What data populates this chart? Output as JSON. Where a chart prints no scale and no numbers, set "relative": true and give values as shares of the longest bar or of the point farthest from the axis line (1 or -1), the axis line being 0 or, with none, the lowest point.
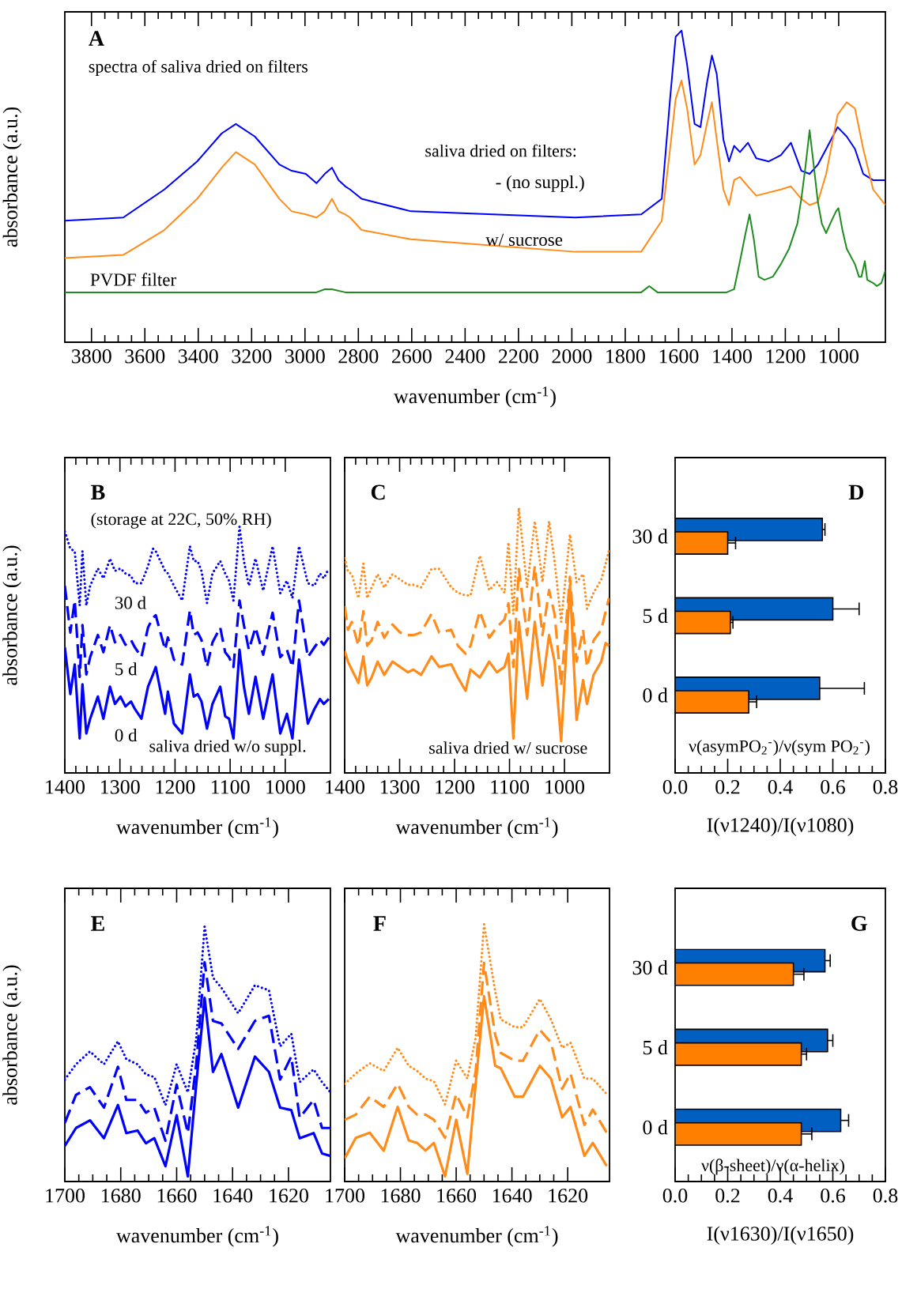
{
  "chart_data": [
    {
      "type": "line",
      "title": "A",
      "xlabel": "wavenumber (cm$^{-1}$)",
      "ylabel": "absorbance (a.u.)",
      "relative": true,
      "xlim": [
        3900,
        825
      ],
      "xticks": [
        3800,
        3600,
        3400,
        3200,
        3000,
        2800,
        2600,
        2400,
        2200,
        2000,
        1800,
        1600,
        1400,
        1200,
        1000
      ],
      "annotations": [
        "spectra of saliva dried on filters",
        "saliva dried on filters:"
      ],
      "series": [
        {
          "name": "- (no suppl.)",
          "color": "#0000ff",
          "line_style": "solid",
          "x": [
            3900,
            3681,
            3527,
            3404,
            3312,
            3259,
            3188,
            3096,
            3050,
            2997,
            2957,
            2926,
            2899,
            2874,
            2849,
            2831,
            2788,
            2603,
            2295,
            1987,
            1740,
            1663,
            1632,
            1611,
            1589,
            1568,
            1540,
            1518,
            1494,
            1475,
            1457,
            1432,
            1411,
            1392,
            1370,
            1340,
            1309,
            1263,
            1217,
            1179,
            1140,
            1109,
            1078,
            1047,
            1004,
            970,
            939,
            908,
            871,
            825
          ],
          "values": [
            0.39,
            0.4,
            0.49,
            0.58,
            0.67,
            0.7,
            0.66,
            0.57,
            0.55,
            0.54,
            0.51,
            0.54,
            0.56,
            0.52,
            0.5,
            0.49,
            0.46,
            0.42,
            0.41,
            0.4,
            0.41,
            0.46,
            0.78,
            0.98,
            1.0,
            0.89,
            0.7,
            0.69,
            0.83,
            0.92,
            0.86,
            0.65,
            0.58,
            0.63,
            0.61,
            0.64,
            0.59,
            0.58,
            0.6,
            0.64,
            0.55,
            0.54,
            0.57,
            0.62,
            0.69,
            0.66,
            0.62,
            0.54,
            0.52,
            0.52
          ]
        },
        {
          "name": "w/ sucrose",
          "color": "#ff8c1a",
          "line_style": "solid",
          "x": [
            3900,
            3681,
            3527,
            3404,
            3312,
            3259,
            3188,
            3096,
            3050,
            2997,
            2957,
            2926,
            2899,
            2874,
            2849,
            2831,
            2788,
            2603,
            2295,
            1987,
            1740,
            1663,
            1632,
            1611,
            1589,
            1568,
            1540,
            1518,
            1494,
            1475,
            1457,
            1432,
            1411,
            1392,
            1370,
            1340,
            1309,
            1263,
            1217,
            1179,
            1140,
            1109,
            1078,
            1047,
            1004,
            970,
            939,
            908,
            871,
            825
          ],
          "values": [
            0.27,
            0.28,
            0.36,
            0.46,
            0.56,
            0.61,
            0.57,
            0.46,
            0.42,
            0.41,
            0.4,
            0.42,
            0.46,
            0.42,
            0.41,
            0.4,
            0.36,
            0.33,
            0.31,
            0.29,
            0.29,
            0.39,
            0.62,
            0.78,
            0.84,
            0.75,
            0.57,
            0.6,
            0.7,
            0.77,
            0.65,
            0.49,
            0.44,
            0.52,
            0.53,
            0.5,
            0.47,
            0.48,
            0.49,
            0.5,
            0.46,
            0.44,
            0.45,
            0.54,
            0.73,
            0.77,
            0.75,
            0.62,
            0.49,
            0.44
          ]
        },
        {
          "name": "PVDF filter",
          "color": "#1e8c1e",
          "line_style": "solid",
          "x": [
            3900,
            2957,
            2926,
            2899,
            2849,
            1740,
            1710,
            1679,
            1420,
            1392,
            1370,
            1349,
            1334,
            1318,
            1300,
            1278,
            1247,
            1217,
            1186,
            1155,
            1140,
            1125,
            1109,
            1094,
            1078,
            1063,
            1047,
            1032,
            1010,
            1001,
            986,
            970,
            939,
            924,
            915,
            902,
            893,
            871,
            857,
            840,
            825
          ],
          "values": [
            0.16,
            0.16,
            0.17,
            0.17,
            0.16,
            0.16,
            0.18,
            0.16,
            0.16,
            0.17,
            0.26,
            0.35,
            0.41,
            0.33,
            0.21,
            0.2,
            0.21,
            0.25,
            0.3,
            0.38,
            0.46,
            0.56,
            0.68,
            0.57,
            0.45,
            0.38,
            0.35,
            0.38,
            0.42,
            0.43,
            0.36,
            0.3,
            0.25,
            0.21,
            0.21,
            0.26,
            0.2,
            0.19,
            0.18,
            0.19,
            0.23
          ]
        }
      ]
    },
    {
      "type": "line",
      "title": "B",
      "xlabel": "wavenumber (cm$^{-1}$)",
      "ylabel": "absorbance (a.u.)",
      "relative": true,
      "xlim": [
        1400,
        918
      ],
      "xticks": [
        1400,
        1300,
        1200,
        1100,
        1000
      ],
      "annotations": [
        "(storage at 22C, 50% RH)",
        "saliva dried w/o suppl."
      ],
      "series": [
        {
          "name": "0 d",
          "color": "#0000ff",
          "line_style": "solid",
          "x": [
            1400,
            1390,
            1382,
            1373,
            1368,
            1361,
            1354,
            1340,
            1330,
            1318,
            1309,
            1299,
            1290,
            1280,
            1273,
            1261,
            1249,
            1240,
            1235,
            1218,
            1213,
            1202,
            1187,
            1173,
            1166,
            1159,
            1152,
            1142,
            1132,
            1118,
            1109,
            1102,
            1094,
            1083,
            1075,
            1066,
            1054,
            1040,
            1023,
            1009,
            997,
            987,
            975,
            959,
            947,
            937,
            930,
            921
          ],
          "values": [
            0.51,
            0.32,
            0.44,
            0.14,
            0.36,
            0.16,
            0.22,
            0.31,
            0.22,
            0.35,
            0.28,
            0.31,
            0.27,
            0.29,
            0.26,
            0.22,
            0.35,
            0.4,
            0.43,
            0.24,
            0.33,
            0.2,
            0.16,
            0.4,
            0.31,
            0.32,
            0.29,
            0.18,
            0.28,
            0.35,
            0.23,
            0.22,
            0.14,
            0.5,
            0.35,
            0.24,
            0.39,
            0.22,
            0.4,
            0.16,
            0.24,
            0.14,
            0.46,
            0.2,
            0.26,
            0.3,
            0.28,
            0.3
          ]
        },
        {
          "name": "5 d",
          "color": "#0000ff",
          "line_style": "dashed",
          "x": [
            1400,
            1390,
            1382,
            1373,
            1368,
            1361,
            1354,
            1340,
            1330,
            1318,
            1309,
            1299,
            1290,
            1280,
            1273,
            1261,
            1249,
            1240,
            1235,
            1218,
            1213,
            1202,
            1187,
            1173,
            1166,
            1159,
            1152,
            1142,
            1132,
            1118,
            1109,
            1102,
            1094,
            1083,
            1075,
            1066,
            1054,
            1040,
            1023,
            1009,
            997,
            987,
            975,
            959,
            947,
            937,
            930,
            921
          ],
          "values": [
            0.76,
            0.57,
            0.7,
            0.39,
            0.6,
            0.4,
            0.47,
            0.56,
            0.49,
            0.6,
            0.53,
            0.56,
            0.52,
            0.54,
            0.51,
            0.47,
            0.59,
            0.63,
            0.64,
            0.5,
            0.55,
            0.46,
            0.44,
            0.66,
            0.56,
            0.57,
            0.54,
            0.43,
            0.53,
            0.59,
            0.49,
            0.47,
            0.43,
            0.7,
            0.6,
            0.5,
            0.59,
            0.48,
            0.65,
            0.47,
            0.5,
            0.43,
            0.7,
            0.47,
            0.51,
            0.54,
            0.52,
            0.55
          ]
        },
        {
          "name": "30 d",
          "color": "#0000ff",
          "line_style": "dotted",
          "x": [
            1400,
            1390,
            1382,
            1373,
            1368,
            1361,
            1354,
            1340,
            1330,
            1318,
            1309,
            1299,
            1290,
            1280,
            1273,
            1261,
            1249,
            1240,
            1235,
            1218,
            1213,
            1202,
            1187,
            1173,
            1166,
            1159,
            1152,
            1142,
            1132,
            1118,
            1109,
            1102,
            1094,
            1083,
            1075,
            1066,
            1054,
            1040,
            1023,
            1009,
            997,
            987,
            975,
            959,
            947,
            937,
            930,
            921
          ],
          "values": [
            0.98,
            0.91,
            0.9,
            0.68,
            0.9,
            0.68,
            0.76,
            0.83,
            0.79,
            0.87,
            0.82,
            0.83,
            0.81,
            0.8,
            0.77,
            0.77,
            0.84,
            0.91,
            0.9,
            0.82,
            0.81,
            0.76,
            0.7,
            0.92,
            0.86,
            0.86,
            0.82,
            0.69,
            0.81,
            0.86,
            0.81,
            0.78,
            0.7,
            1.0,
            0.86,
            0.76,
            0.87,
            0.74,
            0.92,
            0.73,
            0.78,
            0.71,
            0.92,
            0.77,
            0.76,
            0.81,
            0.79,
            0.83
          ]
        }
      ]
    },
    {
      "type": "line",
      "title": "C",
      "xlabel": "wavenumber (cm$^{-1}$)",
      "relative": true,
      "xlim": [
        1400,
        918
      ],
      "xticks": [
        1400,
        1300,
        1200,
        1100,
        1000
      ],
      "annotations": [
        "saliva dried w/ sucrose"
      ],
      "series": [
        {
          "color": "#ff8c1a",
          "line_style": "solid",
          "x": [
            1400,
            1394,
            1387,
            1375,
            1366,
            1359,
            1351,
            1340,
            1328,
            1313,
            1299,
            1285,
            1275,
            1261,
            1242,
            1228,
            1206,
            1194,
            1180,
            1171,
            1154,
            1137,
            1123,
            1109,
            1102,
            1093,
            1083,
            1068,
            1054,
            1040,
            1028,
            1018,
            1006,
            990,
            978,
            966,
            959,
            947,
            933,
            925,
            919
          ],
          "values": [
            0.46,
            0.42,
            0.39,
            0.34,
            0.44,
            0.33,
            0.36,
            0.42,
            0.37,
            0.42,
            0.4,
            0.38,
            0.39,
            0.37,
            0.44,
            0.4,
            0.41,
            0.36,
            0.31,
            0.39,
            0.36,
            0.42,
            0.38,
            0.4,
            0.45,
            0.13,
            0.57,
            0.28,
            0.57,
            0.33,
            0.52,
            0.42,
            0.12,
            0.71,
            0.2,
            0.35,
            0.26,
            0.37,
            0.42,
            0.49,
            0.48
          ]
        },
        {
          "color": "#ff8c1a",
          "line_style": "dashed",
          "x": [
            1400,
            1394,
            1387,
            1375,
            1366,
            1359,
            1351,
            1340,
            1328,
            1313,
            1299,
            1285,
            1275,
            1261,
            1242,
            1228,
            1206,
            1194,
            1180,
            1171,
            1154,
            1137,
            1123,
            1109,
            1102,
            1093,
            1083,
            1068,
            1054,
            1040,
            1028,
            1018,
            1006,
            990,
            978,
            966,
            959,
            947,
            933,
            925,
            919
          ],
          "values": [
            0.63,
            0.54,
            0.57,
            0.48,
            0.61,
            0.48,
            0.5,
            0.57,
            0.51,
            0.56,
            0.53,
            0.52,
            0.52,
            0.53,
            0.6,
            0.53,
            0.54,
            0.48,
            0.45,
            0.48,
            0.61,
            0.51,
            0.55,
            0.58,
            0.64,
            0.4,
            0.77,
            0.52,
            0.78,
            0.52,
            0.69,
            0.6,
            0.33,
            0.74,
            0.42,
            0.54,
            0.4,
            0.5,
            0.54,
            0.61,
            0.66
          ]
        },
        {
          "color": "#ff8c1a",
          "line_style": "dotted",
          "x": [
            1400,
            1394,
            1387,
            1375,
            1366,
            1359,
            1351,
            1340,
            1328,
            1313,
            1299,
            1285,
            1275,
            1261,
            1242,
            1228,
            1206,
            1194,
            1180,
            1171,
            1154,
            1137,
            1123,
            1109,
            1102,
            1093,
            1083,
            1068,
            1054,
            1040,
            1028,
            1018,
            1006,
            990,
            978,
            966,
            959,
            947,
            933,
            925,
            919
          ],
          "values": [
            0.81,
            0.76,
            0.75,
            0.66,
            0.79,
            0.66,
            0.7,
            0.75,
            0.7,
            0.75,
            0.73,
            0.71,
            0.71,
            0.7,
            0.77,
            0.77,
            0.7,
            0.68,
            0.67,
            0.67,
            0.82,
            0.69,
            0.72,
            0.68,
            0.87,
            0.6,
            1.0,
            0.7,
            0.95,
            0.72,
            0.95,
            0.8,
            0.57,
            0.9,
            0.72,
            0.75,
            0.62,
            0.68,
            0.73,
            0.79,
            0.84
          ]
        }
      ]
    },
    {
      "type": "bar",
      "orientation": "horizontal",
      "title": "D",
      "xlabel": "I(ν1240)/I(ν1080)",
      "categories": [
        "30 d",
        "5 d",
        "0 d"
      ],
      "xlim": [
        0,
        0.8
      ],
      "xticks": [
        {
          "value": 0,
          "label": "0.0"
        },
        {
          "value": 0.2,
          "label": "0.2"
        },
        {
          "value": 0.4,
          "label": "0.4"
        },
        {
          "value": 0.6,
          "label": "0.6"
        },
        {
          "value": 0.8,
          "label": "0.8"
        }
      ],
      "annotations": [
        "ν(asymPO$_{2}$$^{-}$)/ν(sym PO$_{2}$$^{-}$)"
      ],
      "series": [
        {
          "color": "#005fc0",
          "values": [
            0.56,
            0.6,
            0.55
          ],
          "errors": [
            [
              0.56,
              0.57
            ],
            [
              0.6,
              0.7
            ],
            [
              0.55,
              0.72
            ]
          ]
        },
        {
          "color": "#ff8000",
          "values": [
            0.2,
            0.21,
            0.28
          ],
          "errors": [
            [
              0.2,
              0.23
            ],
            [
              0.21,
              0.22
            ],
            [
              0.28,
              0.31
            ]
          ]
        }
      ]
    },
    {
      "type": "line",
      "title": "E",
      "xlabel": "wavenumber (cm$^{-1}$)",
      "ylabel": "absorbance (a.u.)",
      "relative": true,
      "xlim": [
        1700,
        1605
      ],
      "xticks": [
        1700,
        1680,
        1660,
        1640,
        1620
      ],
      "series": [
        {
          "color": "#0000ff",
          "line_style": "solid",
          "x": [
            1700,
            1696,
            1691,
            1686,
            1681,
            1678,
            1674,
            1671,
            1668,
            1664,
            1660,
            1656,
            1653,
            1650,
            1647,
            1644,
            1638,
            1632,
            1627,
            1623,
            1619,
            1616,
            1611,
            1608,
            1605
          ],
          "values": [
            0.14,
            0.21,
            0.24,
            0.17,
            0.3,
            0.19,
            0.2,
            0.15,
            0.17,
            0.06,
            0.26,
            0.02,
            0.38,
            0.72,
            0.43,
            0.5,
            0.29,
            0.49,
            0.43,
            0.29,
            0.28,
            0.17,
            0.19,
            0.11,
            0.1
          ]
        },
        {
          "color": "#0000ff",
          "line_style": "dashed",
          "x": [
            1700,
            1696,
            1691,
            1686,
            1681,
            1678,
            1674,
            1671,
            1668,
            1664,
            1660,
            1656,
            1653,
            1650,
            1647,
            1644,
            1638,
            1632,
            1627,
            1623,
            1619,
            1616,
            1611,
            1608,
            1605
          ],
          "values": [
            0.23,
            0.34,
            0.37,
            0.29,
            0.45,
            0.32,
            0.32,
            0.27,
            0.29,
            0.16,
            0.38,
            0.19,
            0.46,
            0.86,
            0.63,
            0.62,
            0.52,
            0.63,
            0.65,
            0.4,
            0.49,
            0.25,
            0.32,
            0.21,
            0.21
          ]
        },
        {
          "color": "#0000ff",
          "line_style": "dotted",
          "x": [
            1700,
            1696,
            1691,
            1686,
            1681,
            1678,
            1674,
            1671,
            1668,
            1664,
            1660,
            1656,
            1653,
            1650,
            1647,
            1644,
            1638,
            1632,
            1627,
            1623,
            1619,
            1616,
            1611,
            1608,
            1605
          ],
          "values": [
            0.4,
            0.46,
            0.51,
            0.46,
            0.55,
            0.48,
            0.46,
            0.42,
            0.41,
            0.3,
            0.46,
            0.35,
            0.56,
            1.0,
            0.8,
            0.76,
            0.66,
            0.77,
            0.75,
            0.53,
            0.58,
            0.39,
            0.44,
            0.39,
            0.35
          ]
        }
      ]
    },
    {
      "type": "line",
      "title": "F",
      "xlabel": "wavenumber (cm$^{-1}$)",
      "relative": true,
      "xlim": [
        1700,
        1605
      ],
      "xticks": [
        1700,
        1680,
        1660,
        1640,
        1620
      ],
      "series": [
        {
          "color": "#ff8c1a",
          "line_style": "solid",
          "x": [
            1700,
            1696,
            1691,
            1686,
            1681,
            1677,
            1674,
            1671,
            1668,
            1664,
            1660,
            1656,
            1653,
            1650,
            1646,
            1644,
            1639,
            1636,
            1630,
            1626,
            1622,
            1619,
            1614,
            1611,
            1606
          ],
          "values": [
            0.09,
            0.17,
            0.19,
            0.12,
            0.29,
            0.16,
            0.15,
            0.12,
            0.15,
            0.02,
            0.24,
            0.03,
            0.38,
            0.72,
            0.45,
            0.44,
            0.33,
            0.33,
            0.45,
            0.4,
            0.25,
            0.29,
            0.1,
            0.15,
            0.06
          ]
        },
        {
          "color": "#ff8c1a",
          "line_style": "dashed",
          "x": [
            1700,
            1696,
            1691,
            1686,
            1681,
            1677,
            1674,
            1671,
            1668,
            1664,
            1660,
            1656,
            1653,
            1650,
            1646,
            1644,
            1639,
            1636,
            1630,
            1626,
            1622,
            1619,
            1614,
            1611,
            1606
          ],
          "values": [
            0.24,
            0.26,
            0.33,
            0.29,
            0.38,
            0.29,
            0.26,
            0.26,
            0.24,
            0.17,
            0.34,
            0.25,
            0.43,
            0.85,
            0.57,
            0.5,
            0.47,
            0.47,
            0.59,
            0.54,
            0.36,
            0.42,
            0.22,
            0.28,
            0.19
          ]
        },
        {
          "color": "#ff8c1a",
          "line_style": "dotted",
          "x": [
            1700,
            1696,
            1691,
            1686,
            1681,
            1677,
            1674,
            1671,
            1668,
            1664,
            1660,
            1656,
            1653,
            1650,
            1646,
            1644,
            1639,
            1636,
            1630,
            1626,
            1622,
            1619,
            1614,
            1611,
            1606
          ],
          "values": [
            0.38,
            0.42,
            0.46,
            0.43,
            0.52,
            0.45,
            0.43,
            0.4,
            0.39,
            0.3,
            0.47,
            0.4,
            0.56,
            1.0,
            0.74,
            0.63,
            0.6,
            0.6,
            0.71,
            0.63,
            0.52,
            0.54,
            0.4,
            0.4,
            0.34
          ]
        }
      ]
    },
    {
      "type": "bar",
      "orientation": "horizontal",
      "title": "G",
      "xlabel": "I(ν1630)/I(ν1650)",
      "categories": [
        "30 d",
        "5 d",
        "0 d"
      ],
      "xlim": [
        0,
        0.8
      ],
      "xticks": [
        {
          "value": 0,
          "label": "0.0"
        },
        {
          "value": 0.2,
          "label": "0.2"
        },
        {
          "value": 0.4,
          "label": "0.4"
        },
        {
          "value": 0.6,
          "label": "0.6"
        },
        {
          "value": 0.8,
          "label": "0.8"
        }
      ],
      "annotations": [
        "ν(β-sheet)/ν(α-helix)"
      ],
      "series": [
        {
          "color": "#005fc0",
          "values": [
            0.57,
            0.58,
            0.63
          ],
          "errors": [
            [
              0.57,
              0.59
            ],
            [
              0.58,
              0.6
            ],
            [
              0.63,
              0.66
            ]
          ]
        },
        {
          "color": "#ff8000",
          "values": [
            0.45,
            0.48,
            0.48
          ],
          "errors": [
            [
              0.45,
              0.49
            ],
            [
              0.48,
              0.5
            ],
            [
              0.48,
              0.52
            ]
          ]
        }
      ]
    }
  ]
}
